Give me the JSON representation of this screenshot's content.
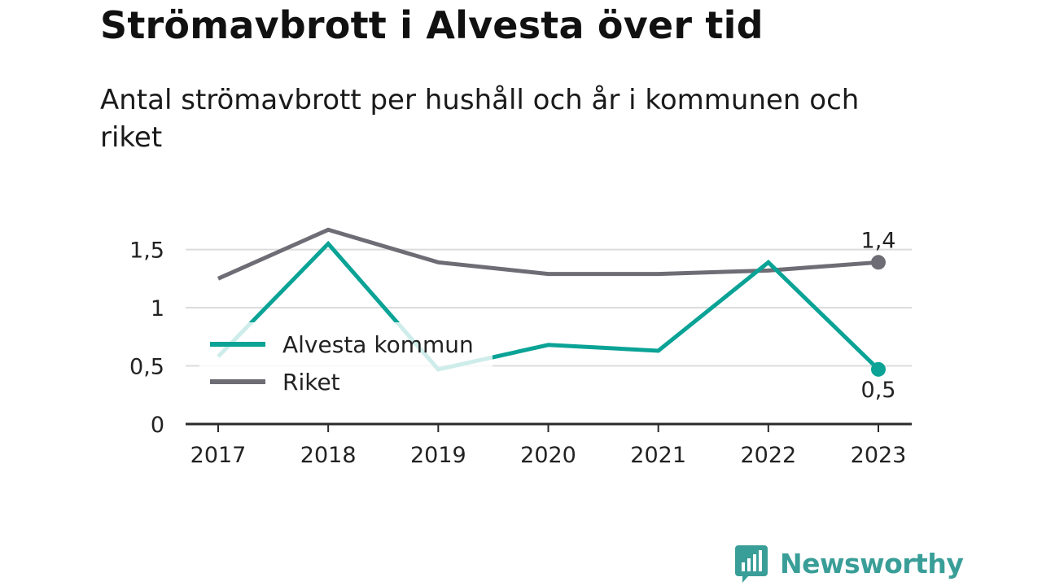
{
  "title": "Strömavbrott i Alvesta över tid",
  "subtitle": "Antal strömavbrott per hushåll och år i kommunen och riket",
  "brand": {
    "name": "Newsworthy",
    "color": "#3a9e98",
    "icon": "bar-chart-speech-bubble-icon"
  },
  "chart_data": {
    "type": "line",
    "x": [
      "2017",
      "2018",
      "2019",
      "2020",
      "2021",
      "2022",
      "2023"
    ],
    "series": [
      {
        "name": "Riket",
        "color": "#6e6d75",
        "values": [
          1.25,
          1.67,
          1.39,
          1.29,
          1.29,
          1.32,
          1.39
        ]
      },
      {
        "name": "Alvesta kommun",
        "color": "#0aa396",
        "values": [
          0.58,
          1.55,
          0.47,
          0.68,
          0.63,
          1.39,
          0.47
        ]
      }
    ],
    "yticks": [
      {
        "value": 0,
        "label": "0"
      },
      {
        "value": 0.5,
        "label": "0,5"
      },
      {
        "value": 1,
        "label": "1"
      },
      {
        "value": 1.5,
        "label": "1,5"
      }
    ],
    "ylim": [
      0,
      1.7
    ],
    "grid": true,
    "legend_position": "left",
    "end_labels": {
      "Riket": "1,4",
      "Alvesta kommun": "0,5"
    }
  }
}
